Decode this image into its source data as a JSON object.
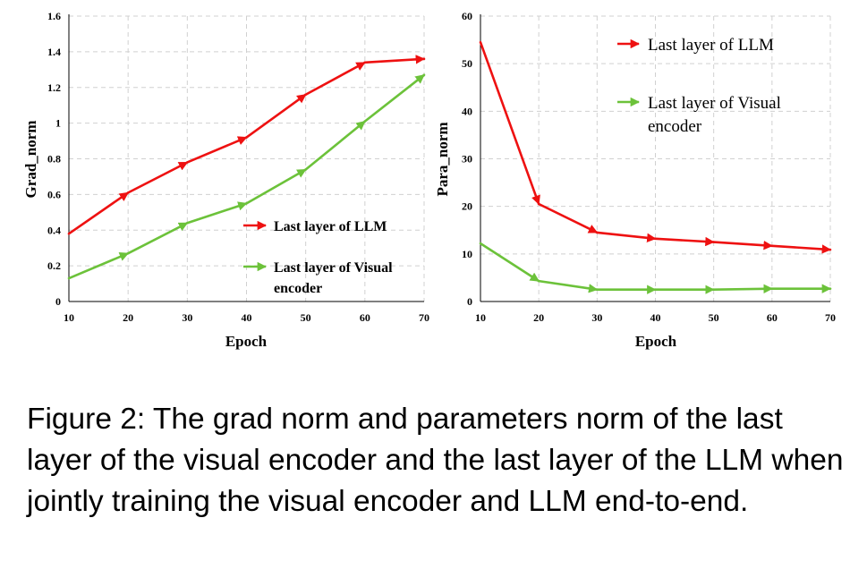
{
  "chart_data": [
    {
      "type": "line",
      "x": [
        10,
        20,
        30,
        40,
        50,
        60,
        70
      ],
      "xticks": [
        "10",
        "20",
        "30",
        "40",
        "50",
        "60",
        "70"
      ],
      "yticks": [
        "0",
        "0.2",
        "0.4",
        "0.6",
        "0.8",
        "1",
        "1.2",
        "1.4",
        "1.6"
      ],
      "xlim": [
        10,
        70
      ],
      "ylim": [
        0,
        1.6
      ],
      "xlabel": "Epoch",
      "ylabel": "Grad_norm",
      "grid": true,
      "legend_position": "bottom-right",
      "series": [
        {
          "name": "Last layer of LLM",
          "color": "#ee1111",
          "values": [
            0.38,
            0.61,
            0.78,
            0.92,
            1.16,
            1.34,
            1.36
          ]
        },
        {
          "name": "Last layer of Visual encoder",
          "color": "#6cc23a",
          "values": [
            0.13,
            0.27,
            0.44,
            0.55,
            0.74,
            1.01,
            1.27
          ]
        }
      ]
    },
    {
      "type": "line",
      "x": [
        10,
        20,
        30,
        40,
        50,
        60,
        70
      ],
      "xticks": [
        "10",
        "20",
        "30",
        "40",
        "50",
        "60",
        "70"
      ],
      "yticks": [
        "0",
        "10",
        "20",
        "30",
        "40",
        "50",
        "60"
      ],
      "xlim": [
        10,
        70
      ],
      "ylim": [
        0,
        60
      ],
      "xlabel": "Epoch",
      "ylabel": "Para_norm",
      "grid": true,
      "legend_position": "top-right",
      "series": [
        {
          "name": "Last layer of LLM",
          "color": "#ee1111",
          "values": [
            54.5,
            20.5,
            14.5,
            13.2,
            12.5,
            11.7,
            10.9
          ]
        },
        {
          "name": "Last layer of Visual encoder",
          "color": "#6cc23a",
          "values": [
            12.2,
            4.3,
            2.5,
            2.5,
            2.5,
            2.7,
            2.7
          ]
        }
      ]
    }
  ],
  "caption": "Figure 2: The grad norm and parameters norm of the last layer of the visual encoder and the last layer of the LLM when jointly training the visual encoder and LLM end-to-end."
}
